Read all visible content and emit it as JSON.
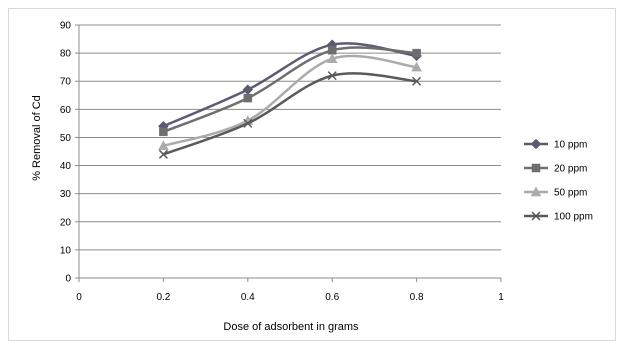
{
  "chart_data": {
    "type": "line",
    "title": "",
    "xlabel": "Dose of adsorbent  in grams",
    "ylabel": "% Removal of Cd",
    "xlim": [
      0,
      1
    ],
    "ylim": [
      0,
      90
    ],
    "x_ticks": [
      0,
      0.2,
      0.4,
      0.6,
      0.8,
      1
    ],
    "x_tick_labels": [
      "0",
      "0.2",
      "0.4",
      "0.6",
      "0.8",
      "1"
    ],
    "y_ticks": [
      0,
      10,
      20,
      30,
      40,
      50,
      60,
      70,
      80,
      90
    ],
    "y_tick_labels": [
      "0",
      "10",
      "20",
      "30",
      "40",
      "50",
      "60",
      "70",
      "80",
      "90"
    ],
    "grid": "horizontal",
    "smooth": true,
    "legend_position": "right",
    "x": [
      0.2,
      0.4,
      0.6,
      0.8
    ],
    "series": [
      {
        "name": "10 ppm",
        "values": [
          54,
          67,
          83,
          79
        ],
        "color": "#5b5b73",
        "marker": "diamond"
      },
      {
        "name": "20 ppm",
        "values": [
          52,
          64,
          81,
          80
        ],
        "color": "#6e6e6e",
        "marker": "square"
      },
      {
        "name": "50 ppm",
        "values": [
          47,
          56,
          78,
          75
        ],
        "color": "#ababab",
        "marker": "triangle"
      },
      {
        "name": "100 ppm",
        "values": [
          44,
          55,
          72,
          70
        ],
        "color": "#5a5a5a",
        "marker": "x"
      }
    ]
  }
}
